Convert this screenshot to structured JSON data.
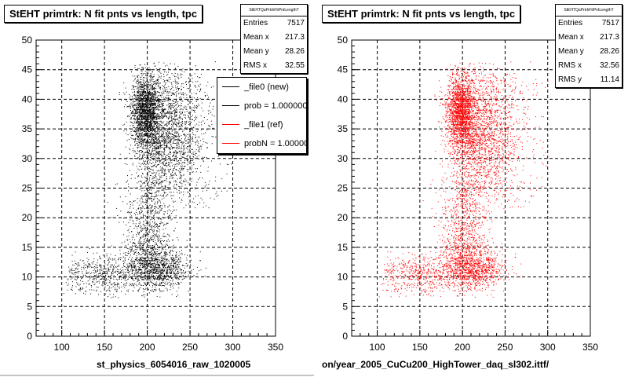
{
  "chart_data": [
    {
      "type": "scatter",
      "title": "StEHT primtrk: N fit pnts vs length, tpc",
      "xlim": [
        70,
        350
      ],
      "ylim": [
        0,
        50
      ],
      "x_ticks": [
        100,
        150,
        200,
        250,
        300,
        350
      ],
      "y_ticks": [
        0,
        5,
        10,
        15,
        20,
        25,
        30,
        35,
        40,
        45,
        50
      ],
      "grid": true,
      "color": "#000000",
      "xlabel": "st_physics_6054016_raw_1020005",
      "stats": {
        "name": "StEHTQaPrtrkFitPntLengthT",
        "rows": [
          {
            "label": "Entries",
            "value": "7517"
          },
          {
            "label": "Mean x",
            "value": "217.3"
          },
          {
            "label": "Mean y",
            "value": "28.26"
          },
          {
            "label": "RMS x",
            "value": "32.55"
          }
        ]
      },
      "legend": [
        {
          "label": "_file0 (new)",
          "color": "#000000"
        },
        {
          "label": "prob = 1.000000",
          "color": "#000000"
        },
        {
          "label": "_file1 (ref)",
          "color": "#ff0000"
        },
        {
          "label": "probN = 1.000000",
          "color": "#ff0000"
        }
      ]
    },
    {
      "type": "scatter",
      "title": "StEHT primtrk: N fit pnts vs length, tpc",
      "xlim": [
        70,
        350
      ],
      "ylim": [
        0,
        50
      ],
      "x_ticks": [
        100,
        150,
        200,
        250,
        300,
        350
      ],
      "y_ticks": [
        0,
        5,
        10,
        15,
        20,
        25,
        30,
        35,
        40,
        45,
        50
      ],
      "grid": true,
      "color": "#ff0000",
      "xlabel": "on/year_2005_CuCu200_HighTower_daq_sl302.ittf/",
      "stats": {
        "name": "StEHTQaPrtrkFitPntLengthT",
        "rows": [
          {
            "label": "Entries",
            "value": "7517"
          },
          {
            "label": "Mean x",
            "value": "217.3"
          },
          {
            "label": "Mean y",
            "value": "28.26"
          },
          {
            "label": "RMS x",
            "value": "32.56"
          },
          {
            "label": "RMS y",
            "value": "11.14"
          }
        ]
      }
    }
  ]
}
